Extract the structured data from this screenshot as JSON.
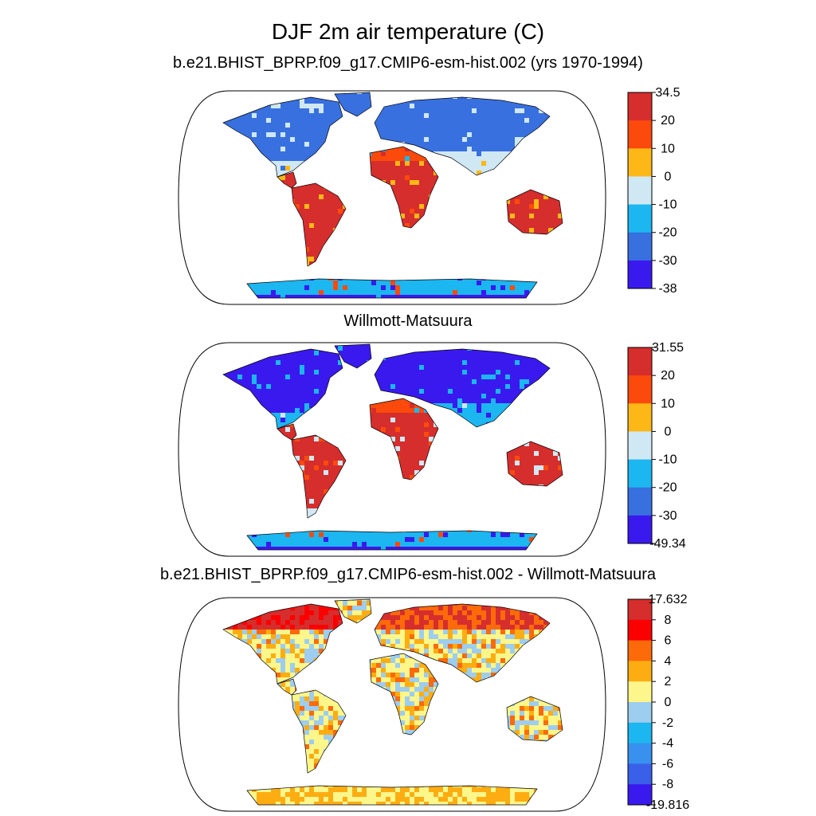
{
  "title": "DJF 2m air temperature (C)",
  "panels": [
    {
      "title": "b.e21.BHIST_BPRP.f09_g17.CMIP6-esm-hist.002 (yrs 1970-1994)",
      "colorbar": {
        "labels": [
          "34.5",
          "20",
          "10",
          "0",
          "-10",
          "-20",
          "-30",
          "-38"
        ],
        "colors": [
          "#d62d2d",
          "#fc4a0c",
          "#fdb716",
          "#cfe8f4",
          "#1cb6f1",
          "#3870e0",
          "#3a19ee"
        ]
      }
    },
    {
      "title": "Willmott-Matsuura",
      "colorbar": {
        "labels": [
          "31.55",
          "20",
          "10",
          "0",
          "-10",
          "-20",
          "-30",
          "-49.34"
        ],
        "colors": [
          "#d62d2d",
          "#fc4a0c",
          "#fdb716",
          "#cfe8f4",
          "#1cb6f1",
          "#3870e0",
          "#3a19ee"
        ]
      }
    },
    {
      "title": "b.e21.BHIST_BPRP.f09_g17.CMIP6-esm-hist.002 - Willmott-Matsuura",
      "colorbar": {
        "labels": [
          "17.632",
          "8",
          "6",
          "4",
          "2",
          "0",
          "-2",
          "-4",
          "-6",
          "-8",
          "-19.816"
        ],
        "colors": [
          "#d62d2d",
          "#fa0000",
          "#fc6a0a",
          "#fdad12",
          "#fdf68a",
          "#9dcdef",
          "#1cb6f1",
          "#3891ee",
          "#3a60ea",
          "#3a19ee"
        ]
      }
    }
  ]
}
